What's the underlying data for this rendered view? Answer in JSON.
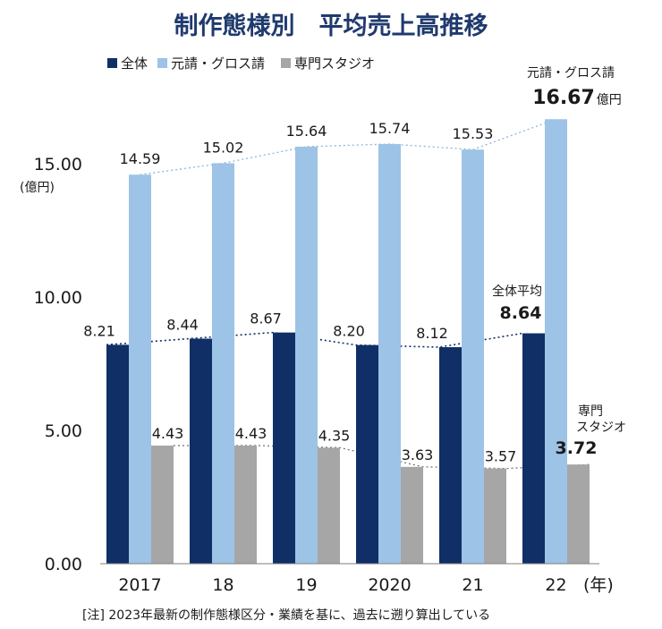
{
  "title": "制作態様別　平均売上高推移",
  "y_unit": "(億円)",
  "x_unit": "(年)",
  "footnote": "[注]  2023年最新の制作態様区分・業績を基に、過去に遡り算出している",
  "colors": {
    "total": "#0f2f66",
    "gross": "#9dc3e6",
    "studio": "#a6a6a6",
    "title": "#1f3a6e"
  },
  "legend": [
    {
      "key": "total",
      "label": "全体"
    },
    {
      "key": "gross",
      "label": "元請・グロス請"
    },
    {
      "key": "studio",
      "label": "専門スタジオ"
    }
  ],
  "annotations": {
    "gross_name": "元請・グロス請",
    "gross_value": "16.67",
    "gross_unit": "億円",
    "total_name": "全体平均",
    "total_value": "8.64",
    "studio_line1": "専門",
    "studio_line2": "スタジオ",
    "studio_value": "3.72"
  },
  "chart_data": {
    "type": "bar",
    "categories": [
      "2017",
      "18",
      "19",
      "2020",
      "21",
      "22"
    ],
    "series": [
      {
        "key": "total",
        "name": "全体",
        "values": [
          8.21,
          8.44,
          8.67,
          8.2,
          8.12,
          8.64
        ],
        "labels": [
          "8.21",
          "8.44",
          "8.67",
          "8.20",
          "8.12",
          "8.64"
        ]
      },
      {
        "key": "gross",
        "name": "元請・グロス請",
        "values": [
          14.59,
          15.02,
          15.64,
          15.74,
          15.53,
          16.67
        ],
        "labels": [
          "14.59",
          "15.02",
          "15.64",
          "15.74",
          "15.53",
          "16.67"
        ]
      },
      {
        "key": "studio",
        "name": "専門スタジオ",
        "values": [
          4.43,
          4.43,
          4.35,
          3.63,
          3.57,
          3.72
        ],
        "labels": [
          "4.43",
          "4.43",
          "4.35",
          "3.63",
          "3.57",
          "3.72"
        ]
      }
    ],
    "yticks": [
      "0.00",
      "5.00",
      "10.00",
      "15.00"
    ],
    "ylim": [
      0,
      20
    ],
    "trend_lines": true,
    "grid": false,
    "legend_position": "top-left"
  }
}
